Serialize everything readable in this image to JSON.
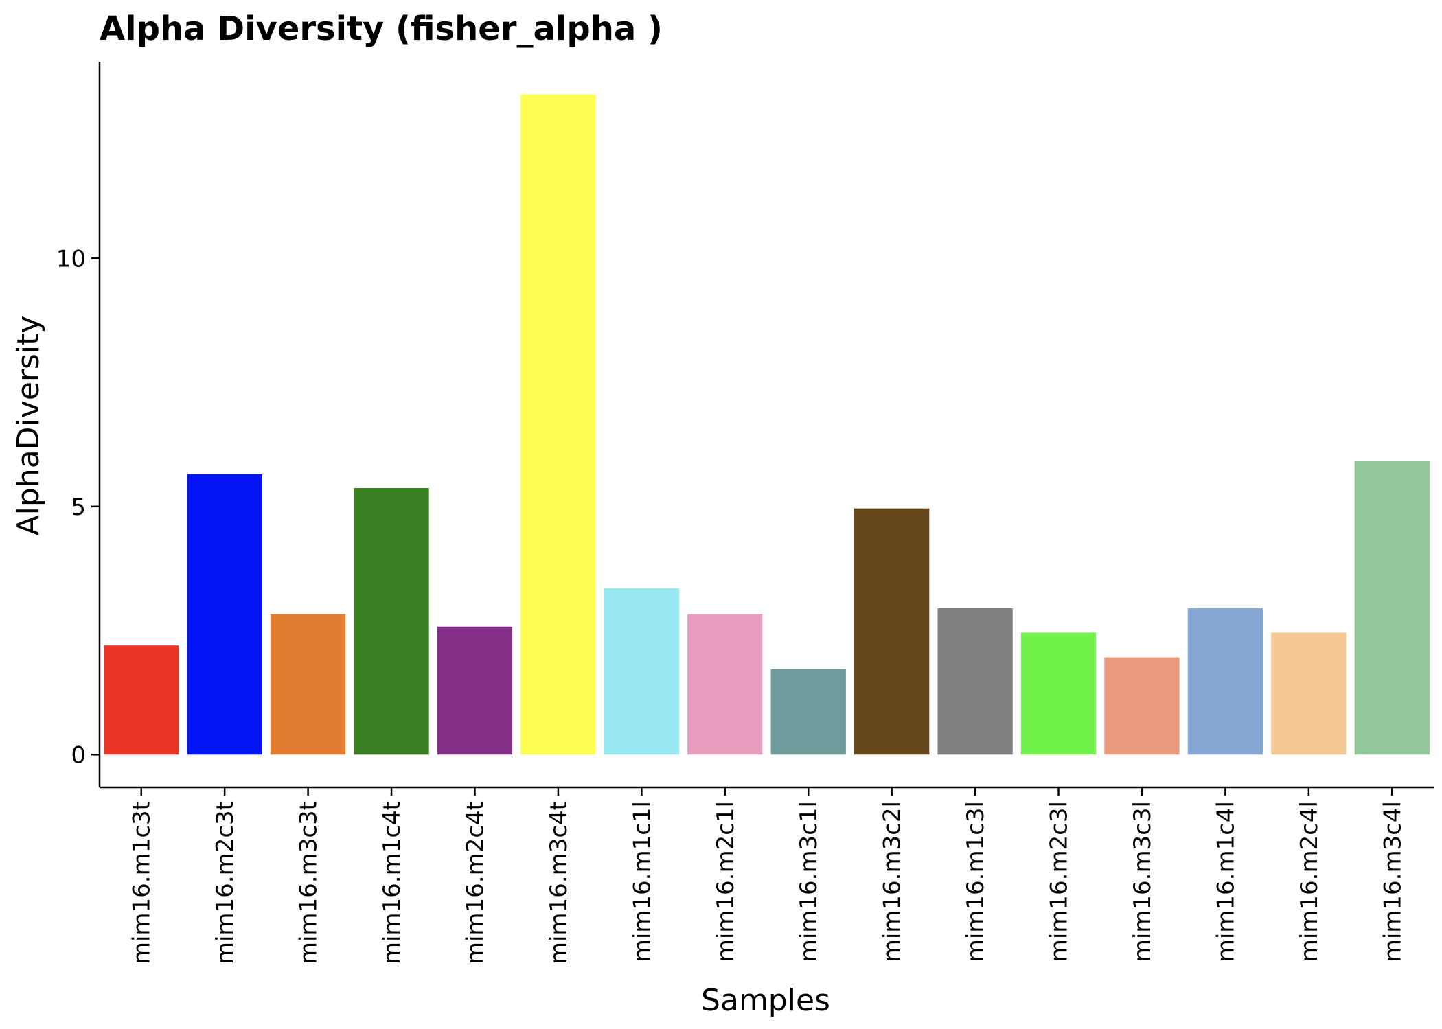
{
  "chart_data": {
    "type": "bar",
    "title": "Alpha Diversity (fisher_alpha )",
    "xlabel": "Samples",
    "ylabel": "AlphaDiversity",
    "categories": [
      "mim16.m1c3t",
      "mim16.m2c3t",
      "mim16.m3c3t",
      "mim16.m1c4t",
      "mim16.m2c4t",
      "mim16.m3c4t",
      "mim16.m1c1l",
      "mim16.m2c1l",
      "mim16.m3c1l",
      "mim16.m3c2l",
      "mim16.m1c3l",
      "mim16.m2c3l",
      "mim16.m3c3l",
      "mim16.m1c4l",
      "mim16.m2c4l",
      "mim16.m3c4l"
    ],
    "values": [
      2.2,
      5.65,
      2.83,
      5.37,
      2.58,
      13.3,
      3.35,
      2.83,
      1.72,
      4.96,
      2.95,
      2.46,
      1.96,
      2.95,
      2.46,
      5.91
    ],
    "colors": [
      "#e93324",
      "#0314f5",
      "#e27c31",
      "#3b7f24",
      "#853088",
      "#fefe53",
      "#98e8f1",
      "#e99ec0",
      "#6e9c9d",
      "#66461b",
      "#808080",
      "#70f24a",
      "#e99a7e",
      "#87a8d4",
      "#f4c893",
      "#92c79c"
    ],
    "yticks": [
      0,
      5,
      10
    ],
    "ylim": [
      -0.66,
      13.96
    ],
    "grid": false,
    "legend": "none"
  }
}
